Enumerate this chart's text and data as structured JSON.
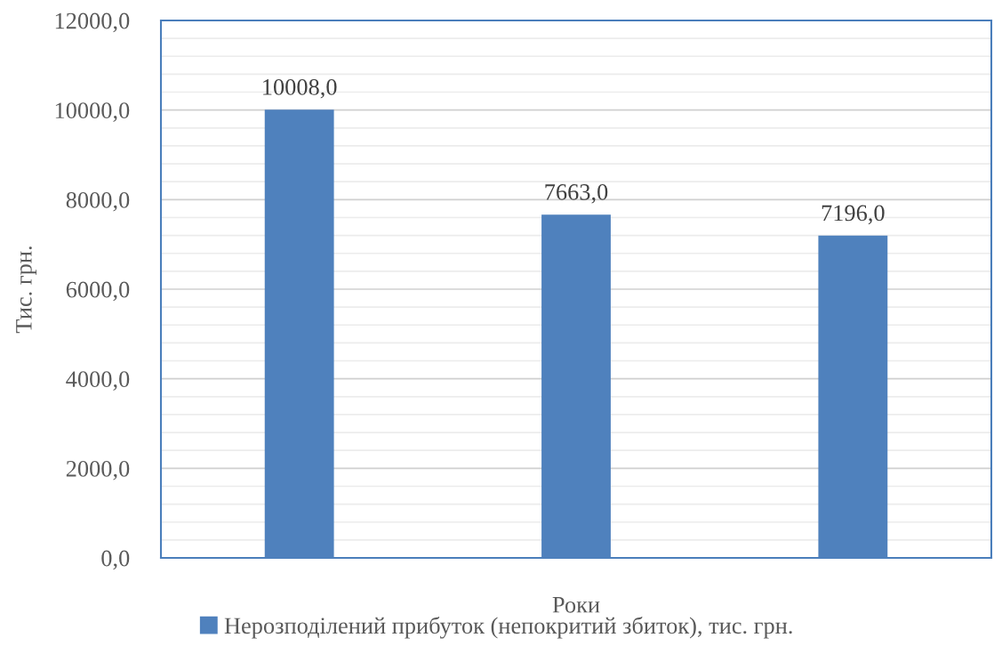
{
  "chart_data": {
    "type": "bar",
    "xlabel": "Роки",
    "ylabel": "Тис. грн.",
    "categories": [
      null,
      null,
      null
    ],
    "series": [
      {
        "name": "Нерозподілений прибуток (непокритий збиток), тис. грн.",
        "color": "#4f81bd",
        "values": [
          10008,
          7663,
          7196
        ],
        "value_labels": [
          "10008,0",
          "7663,0",
          "7196,0"
        ]
      }
    ],
    "ylim": [
      0,
      12000
    ],
    "yticks": [
      {
        "value": 0,
        "label": "0,0"
      },
      {
        "value": 400,
        "label": null
      },
      {
        "value": 800,
        "label": null
      },
      {
        "value": 1200,
        "label": null
      },
      {
        "value": 1600,
        "label": null
      },
      {
        "value": 2000,
        "label": "2000,0"
      },
      {
        "value": 2400,
        "label": null
      },
      {
        "value": 2800,
        "label": null
      },
      {
        "value": 3200,
        "label": null
      },
      {
        "value": 3600,
        "label": null
      },
      {
        "value": 4000,
        "label": "4000,0"
      },
      {
        "value": 4400,
        "label": null
      },
      {
        "value": 4800,
        "label": null
      },
      {
        "value": 5200,
        "label": null
      },
      {
        "value": 5600,
        "label": null
      },
      {
        "value": 6000,
        "label": "6000,0"
      },
      {
        "value": 6400,
        "label": null
      },
      {
        "value": 6800,
        "label": null
      },
      {
        "value": 7200,
        "label": null
      },
      {
        "value": 7600,
        "label": null
      },
      {
        "value": 8000,
        "label": "8000,0"
      },
      {
        "value": 8400,
        "label": null
      },
      {
        "value": 8800,
        "label": null
      },
      {
        "value": 9200,
        "label": null
      },
      {
        "value": 9600,
        "label": null
      },
      {
        "value": 10000,
        "label": "10000,0"
      },
      {
        "value": 10400,
        "label": null
      },
      {
        "value": 10800,
        "label": null
      },
      {
        "value": 11200,
        "label": null
      },
      {
        "value": 11600,
        "label": null
      },
      {
        "value": 12000,
        "label": "12000,0"
      }
    ],
    "grid": "y",
    "legend": "bottom"
  }
}
